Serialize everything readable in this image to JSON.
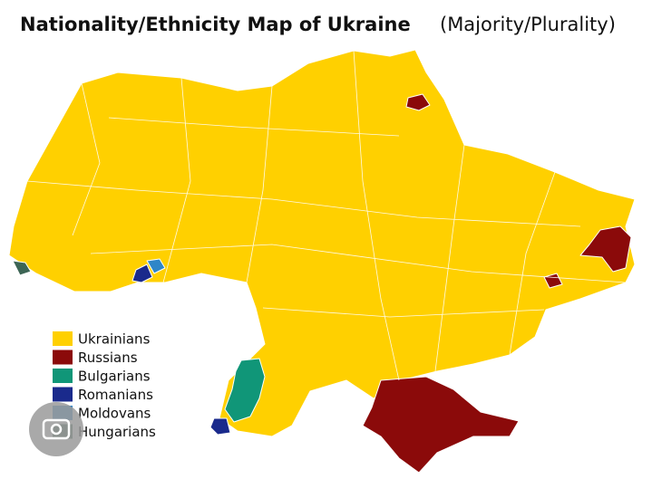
{
  "title": {
    "main": "Nationality/Ethnicity Map of Ukraine",
    "sub": "(Majority/Plurality)"
  },
  "legend": [
    {
      "label": "Ukrainians",
      "color": "#ffd000"
    },
    {
      "label": "Russians",
      "color": "#8b0a0a"
    },
    {
      "label": "Bulgarians",
      "color": "#109678"
    },
    {
      "label": "Romanians",
      "color": "#1a2a8c"
    },
    {
      "label": "Moldovans",
      "color": "#2f86c8"
    },
    {
      "label": "Hungarians",
      "color": "#3d6555"
    }
  ]
}
